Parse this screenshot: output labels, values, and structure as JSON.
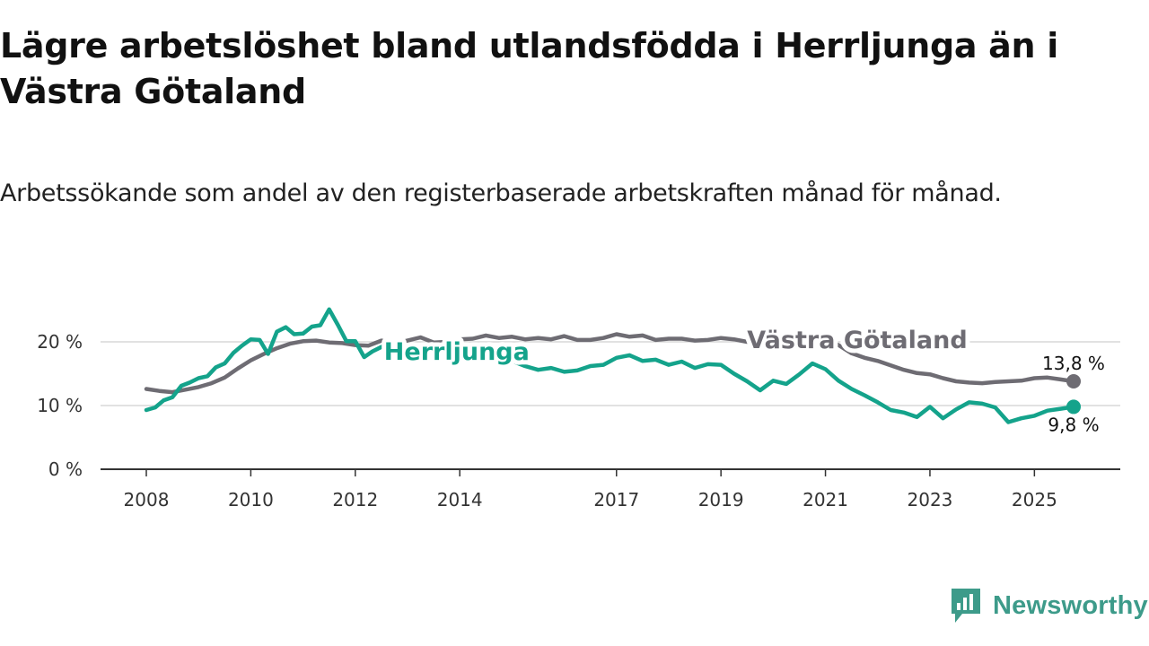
{
  "header": {
    "title": "Lägre arbetslöshet bland utlandsfödda i Herrljunga än i Västra Götaland",
    "subtitle": "Arbetssökande som andel av den registerbaserade arbetskraften månad för månad."
  },
  "chart_data": {
    "type": "line",
    "title": "Lägre arbetslöshet bland utlandsfödda i Herrljunga än i Västra Götaland",
    "subtitle": "Arbetssökande som andel av den registerbaserade arbetskraften månad för månad.",
    "xlabel": "",
    "ylabel": "",
    "xlim": [
      2008.0,
      2025.75
    ],
    "ylim": [
      0,
      20
    ],
    "y_ticks": [
      0,
      10,
      20
    ],
    "y_tick_labels": [
      "0 %",
      "10 %",
      "20 %"
    ],
    "x_ticks": [
      2008,
      2010,
      2012,
      2014,
      2017,
      2019,
      2021,
      2023,
      2025
    ],
    "x_tick_labels": [
      "2008",
      "2010",
      "2012",
      "2014",
      "2017",
      "2019",
      "2021",
      "2023",
      "2025"
    ],
    "grid": true,
    "series": [
      {
        "name": "Västra Götaland",
        "label": "Västra Götaland",
        "color": "#6e6c73",
        "end_label": "13,8 %",
        "points": [
          [
            2008.0,
            12.6
          ],
          [
            2008.25,
            12.3
          ],
          [
            2008.5,
            12.1
          ],
          [
            2008.75,
            12.5
          ],
          [
            2009.0,
            12.9
          ],
          [
            2009.25,
            13.5
          ],
          [
            2009.5,
            14.4
          ],
          [
            2009.75,
            15.8
          ],
          [
            2010.0,
            17.1
          ],
          [
            2010.25,
            18.1
          ],
          [
            2010.5,
            19.0
          ],
          [
            2010.75,
            19.7
          ],
          [
            2011.0,
            20.1
          ],
          [
            2011.25,
            20.2
          ],
          [
            2011.5,
            19.9
          ],
          [
            2011.75,
            19.8
          ],
          [
            2012.0,
            19.5
          ],
          [
            2012.25,
            19.4
          ],
          [
            2012.5,
            20.2
          ],
          [
            2012.75,
            19.7
          ],
          [
            2013.0,
            20.2
          ],
          [
            2013.25,
            20.7
          ],
          [
            2013.5,
            19.9
          ],
          [
            2013.75,
            20.0
          ],
          [
            2014.0,
            20.4
          ],
          [
            2014.25,
            20.5
          ],
          [
            2014.5,
            21.0
          ],
          [
            2014.75,
            20.6
          ],
          [
            2015.0,
            20.8
          ],
          [
            2015.25,
            20.4
          ],
          [
            2015.5,
            20.6
          ],
          [
            2015.75,
            20.4
          ],
          [
            2016.0,
            20.9
          ],
          [
            2016.25,
            20.3
          ],
          [
            2016.5,
            20.3
          ],
          [
            2016.75,
            20.6
          ],
          [
            2017.0,
            21.2
          ],
          [
            2017.25,
            20.8
          ],
          [
            2017.5,
            21.0
          ],
          [
            2017.75,
            20.3
          ],
          [
            2018.0,
            20.5
          ],
          [
            2018.25,
            20.5
          ],
          [
            2018.5,
            20.2
          ],
          [
            2018.75,
            20.3
          ],
          [
            2019.0,
            20.6
          ],
          [
            2019.25,
            20.4
          ],
          [
            2019.5,
            20.0
          ],
          [
            2019.75,
            19.9
          ],
          [
            2020.0,
            19.8
          ],
          [
            2020.25,
            20.1
          ],
          [
            2020.5,
            20.3
          ],
          [
            2020.75,
            20.6
          ],
          [
            2021.0,
            20.4
          ],
          [
            2021.25,
            19.5
          ],
          [
            2021.5,
            18.2
          ],
          [
            2021.75,
            17.5
          ],
          [
            2022.0,
            17.0
          ],
          [
            2022.25,
            16.3
          ],
          [
            2022.5,
            15.6
          ],
          [
            2022.75,
            15.1
          ],
          [
            2023.0,
            14.9
          ],
          [
            2023.25,
            14.3
          ],
          [
            2023.5,
            13.8
          ],
          [
            2023.75,
            13.6
          ],
          [
            2024.0,
            13.5
          ],
          [
            2024.25,
            13.7
          ],
          [
            2024.5,
            13.8
          ],
          [
            2024.75,
            13.9
          ],
          [
            2025.0,
            14.3
          ],
          [
            2025.25,
            14.4
          ],
          [
            2025.5,
            14.1
          ],
          [
            2025.75,
            13.8
          ]
        ]
      },
      {
        "name": "Herrljunga",
        "label": "Herrljunga",
        "color": "#14a38b",
        "end_label": "9,8 %",
        "points": [
          [
            2008.0,
            9.3
          ],
          [
            2008.17,
            9.7
          ],
          [
            2008.33,
            10.8
          ],
          [
            2008.5,
            11.3
          ],
          [
            2008.67,
            13.1
          ],
          [
            2008.83,
            13.6
          ],
          [
            2009.0,
            14.3
          ],
          [
            2009.17,
            14.6
          ],
          [
            2009.33,
            16.0
          ],
          [
            2009.5,
            16.6
          ],
          [
            2009.67,
            18.3
          ],
          [
            2009.83,
            19.4
          ],
          [
            2010.0,
            20.4
          ],
          [
            2010.17,
            20.3
          ],
          [
            2010.33,
            18.1
          ],
          [
            2010.5,
            21.6
          ],
          [
            2010.67,
            22.3
          ],
          [
            2010.83,
            21.2
          ],
          [
            2011.0,
            21.3
          ],
          [
            2011.17,
            22.4
          ],
          [
            2011.33,
            22.6
          ],
          [
            2011.5,
            25.1
          ],
          [
            2011.67,
            22.6
          ],
          [
            2011.83,
            20.1
          ],
          [
            2012.0,
            20.1
          ],
          [
            2012.17,
            17.6
          ],
          [
            2012.33,
            18.5
          ],
          [
            2012.5,
            19.2
          ],
          [
            2012.67,
            19.7
          ],
          [
            2012.83,
            19.5
          ],
          [
            2013.0,
            18.9
          ],
          [
            2013.5,
            18.5
          ],
          [
            2014.0,
            18.7
          ],
          [
            2014.5,
            17.8
          ],
          [
            2015.0,
            17.0
          ],
          [
            2015.25,
            16.2
          ],
          [
            2015.5,
            15.6
          ],
          [
            2015.75,
            15.9
          ],
          [
            2016.0,
            15.3
          ],
          [
            2016.25,
            15.5
          ],
          [
            2016.5,
            16.2
          ],
          [
            2016.75,
            16.4
          ],
          [
            2017.0,
            17.5
          ],
          [
            2017.25,
            17.9
          ],
          [
            2017.5,
            17.0
          ],
          [
            2017.75,
            17.2
          ],
          [
            2018.0,
            16.4
          ],
          [
            2018.25,
            16.9
          ],
          [
            2018.5,
            15.9
          ],
          [
            2018.75,
            16.5
          ],
          [
            2019.0,
            16.4
          ],
          [
            2019.25,
            15.0
          ],
          [
            2019.5,
            13.8
          ],
          [
            2019.75,
            12.4
          ],
          [
            2020.0,
            13.9
          ],
          [
            2020.25,
            13.4
          ],
          [
            2020.5,
            14.9
          ],
          [
            2020.75,
            16.6
          ],
          [
            2021.0,
            15.7
          ],
          [
            2021.25,
            13.9
          ],
          [
            2021.5,
            12.6
          ],
          [
            2021.75,
            11.6
          ],
          [
            2022.0,
            10.5
          ],
          [
            2022.25,
            9.3
          ],
          [
            2022.5,
            8.9
          ],
          [
            2022.75,
            8.2
          ],
          [
            2023.0,
            9.8
          ],
          [
            2023.25,
            8.0
          ],
          [
            2023.5,
            9.4
          ],
          [
            2023.75,
            10.5
          ],
          [
            2024.0,
            10.3
          ],
          [
            2024.25,
            9.7
          ],
          [
            2024.5,
            7.4
          ],
          [
            2024.75,
            8.0
          ],
          [
            2025.0,
            8.4
          ],
          [
            2025.25,
            9.2
          ],
          [
            2025.5,
            9.5
          ],
          [
            2025.75,
            9.8
          ]
        ]
      }
    ]
  },
  "branding": {
    "logo_text": "Newsworthy",
    "logo_icon": "newsworthy-chart-icon",
    "logo_color": "#3d9b8a"
  }
}
